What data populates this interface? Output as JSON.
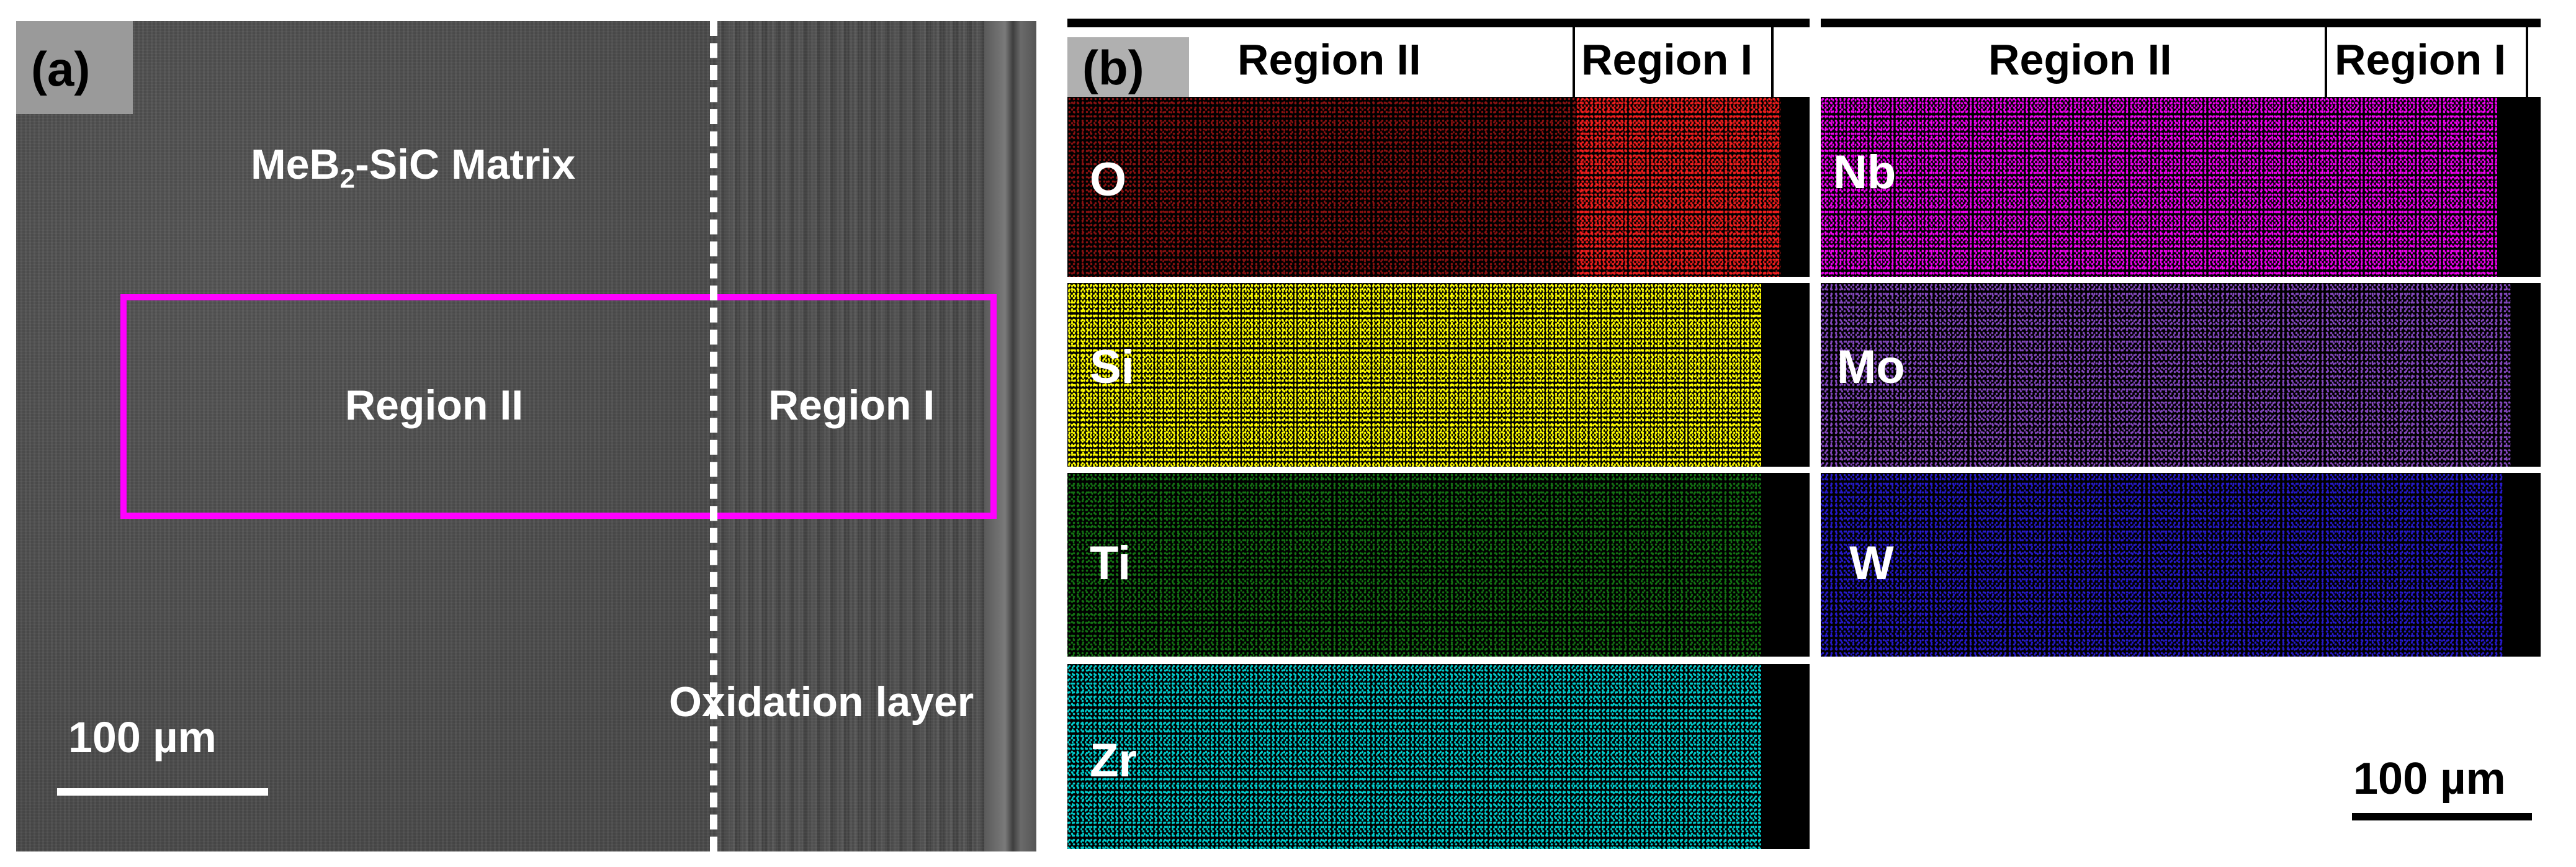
{
  "panel_a": {
    "label": "(a)",
    "matrix_label_main": "MeB",
    "matrix_label_sub": "2",
    "matrix_label_rest": "-SiC Matrix",
    "region_ii": "Region II",
    "region_i": "Region I",
    "oxidation_layer": "Oxidation layer",
    "scale_bar": "100 µm",
    "box_color": "#ff00ff"
  },
  "panel_b": {
    "label": "(b)",
    "header_left": {
      "region_ii": "Region II",
      "region_i": "Region I"
    },
    "header_right": {
      "region_ii": "Region II",
      "region_i": "Region I"
    },
    "maps_left": [
      {
        "element": "O",
        "color": "#ff2020"
      },
      {
        "element": "Si",
        "color": "#ffff00"
      },
      {
        "element": "Ti",
        "color": "#20c020"
      },
      {
        "element": "Zr",
        "color": "#00e5e5"
      }
    ],
    "maps_right": [
      {
        "element": "Nb",
        "color": "#ff00ff"
      },
      {
        "element": "Mo",
        "color": "#b060ff"
      },
      {
        "element": "W",
        "color": "#3020ff"
      }
    ],
    "scale_bar": "100 µm"
  }
}
